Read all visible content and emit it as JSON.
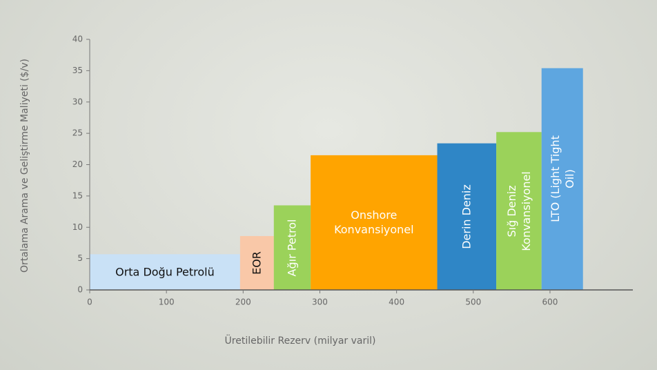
{
  "chart_data": {
    "type": "variable-width-bar",
    "x_label": "Üretilebilir Rezerv (milyar varil)",
    "y_label": "Ortalama Arama ve Geliştirme Maliyeti ($/v)",
    "categories": [
      "Orta Doğu Petrolü",
      "EOR",
      "Ağır Petrol",
      "Onshore\nKonvansiyonel",
      "Derin Deniz",
      "Sığ Deniz\nKonvansiyonel",
      "LTO (Light Tight Oil)"
    ],
    "bins": [
      0,
      196,
      240,
      288,
      453,
      530,
      589,
      643
    ],
    "values": [
      5.7,
      8.6,
      13.5,
      21.5,
      23.4,
      25.2,
      35.4
    ],
    "colors": [
      "#c9e1f6",
      "#f9c8a8",
      "#9bd25a",
      "#ffa400",
      "#2f86c6",
      "#9bd25a",
      "#5ea6e0"
    ],
    "label_colors": [
      "#111111",
      "#111111",
      "#ffffff",
      "#ffffff",
      "#ffffff",
      "#ffffff",
      "#ffffff"
    ],
    "label_orientation": [
      "horizontal",
      "vertical",
      "vertical",
      "horizontal",
      "vertical",
      "vertical",
      "vertical"
    ],
    "xlim": [
      0,
      708
    ],
    "xticks": [
      0,
      100,
      200,
      300,
      400,
      500,
      600
    ],
    "ylim": [
      0,
      40
    ],
    "yticks": [
      0,
      5,
      10,
      15,
      20,
      25,
      30,
      35,
      40
    ]
  }
}
